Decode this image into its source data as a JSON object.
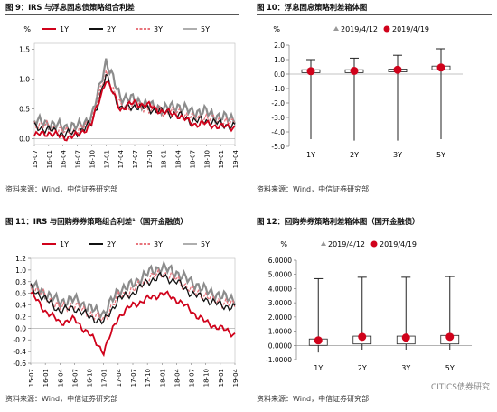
{
  "panels": [
    {
      "title": "图 9：IRS 与浮息固息债策略组合利差",
      "source": "资料来源：Wind，中信证券研究部"
    },
    {
      "title": "图 10：浮息固息策略利差箱体图",
      "source": "资料来源：Wind，中信证券研究部"
    },
    {
      "title": "图 11：IRS 与回购券券策略组合利差¹（国开金融债）",
      "source": "资料来源：Wind，中信证券研究部"
    },
    {
      "title": "图 12：回购券券策略利差箱体图（国开金融债）",
      "source": "资料来源：Wind，中信证券研究部"
    }
  ],
  "watermark": "CITICS债券研究",
  "chart_data": [
    {
      "type": "line",
      "ylabel": "%",
      "legend": [
        "1Y",
        "2Y",
        "3Y",
        "5Y"
      ],
      "colors": [
        "#d0021b",
        "#111111",
        "#e8747c",
        "#8c8c8c"
      ],
      "x": [
        "15-07",
        "16-01",
        "16-04",
        "16-07",
        "16-10",
        "17-01",
        "17-04",
        "17-07",
        "17-10",
        "18-01",
        "18-04",
        "18-07",
        "18-10",
        "19-01",
        "19-04"
      ],
      "series": [
        {
          "name": "1Y",
          "values": [
            0.05,
            0.1,
            0.02,
            0.05,
            0.25,
            1.0,
            0.5,
            0.6,
            0.55,
            0.45,
            0.4,
            0.25,
            0.25,
            0.2,
            0.2
          ]
        },
        {
          "name": "2Y",
          "values": [
            0.2,
            0.15,
            0.08,
            0.1,
            0.25,
            1.05,
            0.5,
            0.55,
            0.5,
            0.45,
            0.4,
            0.3,
            0.3,
            0.25,
            0.2
          ]
        },
        {
          "name": "3Y",
          "values": [
            0.25,
            0.2,
            0.12,
            0.12,
            0.3,
            1.1,
            0.55,
            0.55,
            0.5,
            0.45,
            0.45,
            0.35,
            0.35,
            0.3,
            0.25
          ]
        },
        {
          "name": "5Y",
          "values": [
            0.3,
            0.25,
            0.2,
            0.2,
            0.35,
            1.3,
            0.7,
            0.65,
            0.55,
            0.5,
            0.55,
            0.45,
            0.45,
            0.35,
            0.35
          ]
        }
      ],
      "yticks": [
        "0.0",
        "0.5",
        "1.0",
        "1.5"
      ],
      "ylim": [
        -0.1,
        1.6
      ]
    },
    {
      "type": "box",
      "ylabel": "%",
      "legend": [
        "2019/4/12",
        "2019/4/19"
      ],
      "categories": [
        "1Y",
        "2Y",
        "3Y",
        "5Y"
      ],
      "yticks": [
        "2.0",
        "1.0",
        "0.0",
        "-1.0",
        "-2.0",
        "-3.0",
        "-4.0",
        "-5.0"
      ],
      "ylim": [
        -5.0,
        2.0
      ],
      "boxes": [
        {
          "min": -4.5,
          "q1": 0.1,
          "q3": 0.3,
          "max": 1.0,
          "prev": 0.2,
          "curr": 0.2
        },
        {
          "min": -4.6,
          "q1": 0.1,
          "q3": 0.3,
          "max": 1.1,
          "prev": 0.22,
          "curr": 0.22
        },
        {
          "min": -4.6,
          "q1": 0.15,
          "q3": 0.35,
          "max": 1.3,
          "prev": 0.3,
          "curr": 0.3
        },
        {
          "min": -4.5,
          "q1": 0.3,
          "q3": 0.55,
          "max": 1.75,
          "prev": 0.45,
          "curr": 0.45
        }
      ]
    },
    {
      "type": "line",
      "legend": [
        "1Y",
        "2Y",
        "3Y",
        "5Y"
      ],
      "colors": [
        "#d0021b",
        "#111111",
        "#e8747c",
        "#8c8c8c"
      ],
      "x": [
        "15-07",
        "16-01",
        "16-04",
        "16-07",
        "16-10",
        "17-01",
        "17-04",
        "17-07",
        "17-10",
        "18-01",
        "18-04",
        "18-07",
        "18-10",
        "19-01",
        "19-04"
      ],
      "series": [
        {
          "name": "1Y",
          "values": [
            0.6,
            0.3,
            0.1,
            0.15,
            -0.1,
            -0.4,
            0.2,
            0.4,
            0.5,
            0.6,
            0.5,
            0.3,
            0.1,
            0.0,
            -0.1
          ]
        },
        {
          "name": "2Y",
          "values": [
            0.7,
            0.5,
            0.3,
            0.35,
            0.2,
            0.1,
            0.5,
            0.6,
            0.8,
            0.9,
            0.8,
            0.6,
            0.5,
            0.4,
            0.35
          ]
        },
        {
          "name": "3Y",
          "values": [
            0.72,
            0.55,
            0.35,
            0.4,
            0.25,
            0.15,
            0.55,
            0.65,
            0.85,
            0.95,
            0.85,
            0.65,
            0.55,
            0.45,
            0.4
          ]
        },
        {
          "name": "5Y",
          "values": [
            0.75,
            0.6,
            0.45,
            0.5,
            0.35,
            0.25,
            0.65,
            0.75,
            0.95,
            1.05,
            0.95,
            0.8,
            0.65,
            0.55,
            0.5
          ]
        }
      ],
      "yticks": [
        "1.2",
        "1.0",
        "0.8",
        "0.6",
        "0.4",
        "0.2",
        "0.0",
        "-0.2",
        "-0.4",
        "-0.6"
      ],
      "ylim": [
        -0.6,
        1.2
      ]
    },
    {
      "type": "box",
      "ylabel": "%",
      "legend": [
        "2019/4/12",
        "2019/4/19"
      ],
      "categories": [
        "1Y",
        "2Y",
        "3Y",
        "5Y"
      ],
      "yticks": [
        "6.0000",
        "5.0000",
        "4.0000",
        "3.0000",
        "2.0000",
        "1.0000",
        "0.0000",
        "-1.0000"
      ],
      "ylim": [
        -1.0,
        6.0
      ],
      "boxes": [
        {
          "min": -0.5,
          "q1": 0.0,
          "q3": 0.45,
          "max": 4.7,
          "prev": 0.35,
          "curr": 0.35
        },
        {
          "min": -0.3,
          "q1": 0.1,
          "q3": 0.65,
          "max": 4.8,
          "prev": 0.55,
          "curr": 0.6
        },
        {
          "min": -0.3,
          "q1": 0.1,
          "q3": 0.65,
          "max": 4.8,
          "prev": 0.55,
          "curr": 0.55
        },
        {
          "min": -0.3,
          "q1": 0.1,
          "q3": 0.7,
          "max": 4.85,
          "prev": 0.6,
          "curr": 0.6
        }
      ]
    }
  ]
}
